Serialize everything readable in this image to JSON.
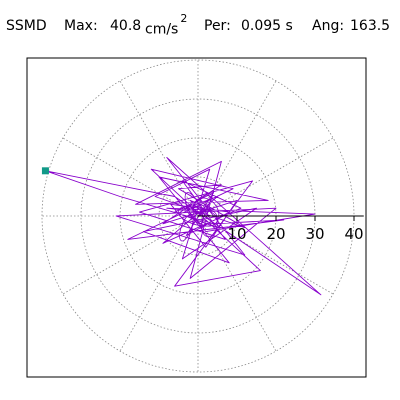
{
  "header": {
    "component": "SSMD",
    "max_label": "Max:",
    "max_value": "40.8",
    "max_unit": "cm/s",
    "max_exp": "2",
    "per_label": "Per:",
    "per_value": "0.095 s",
    "ang_label": "Ang:",
    "ang_value": "163.5"
  },
  "chart_data": {
    "type": "polar-orbit",
    "max_radius": 40.8,
    "peak_angle_deg": 163.5,
    "radial_ticks": [
      10,
      20,
      30,
      40
    ],
    "radial_tick_labels": [
      "10",
      "20",
      "30",
      "40"
    ],
    "radial_rings": [
      10,
      20,
      30,
      40
    ],
    "spoke_step_deg": 30,
    "grid": true,
    "colors": {
      "trace": "#8800cc",
      "peak_marker": "#119988",
      "grid": "#888888",
      "axis": "#000000"
    },
    "trace_vertices": [
      [
        0,
        0
      ],
      [
        3,
        2
      ],
      [
        -2,
        4
      ],
      [
        5,
        -3
      ],
      [
        -6,
        1
      ],
      [
        4,
        6
      ],
      [
        -3,
        -5
      ],
      [
        8,
        1
      ],
      [
        -7,
        3
      ],
      [
        2,
        -8
      ],
      [
        10,
        4
      ],
      [
        -9,
        -2
      ],
      [
        6,
        8
      ],
      [
        -5,
        7
      ],
      [
        12,
        -3
      ],
      [
        -11,
        5
      ],
      [
        3,
        12
      ],
      [
        -4,
        -11
      ],
      [
        15,
        2
      ],
      [
        -14,
        -4
      ],
      [
        8,
        -12
      ],
      [
        -10,
        10
      ],
      [
        18,
        4
      ],
      [
        -16,
        3
      ],
      [
        6,
        14
      ],
      [
        -2,
        -16
      ],
      [
        20,
        2
      ],
      [
        -21,
        0
      ],
      [
        12,
        -10
      ],
      [
        -8,
        15
      ],
      [
        31.5,
        -20.2
      ],
      [
        -6,
        5
      ],
      [
        -39.1,
        11.6
      ],
      [
        -20,
        5
      ],
      [
        4,
        -2
      ],
      [
        22,
        -1
      ],
      [
        -18,
        -6
      ],
      [
        9,
        7
      ],
      [
        -12,
        12
      ],
      [
        16,
        -14
      ],
      [
        -6,
        -18
      ],
      [
        14,
        9
      ],
      [
        -15,
        1
      ],
      [
        7,
        -6
      ],
      [
        -4,
        9
      ],
      [
        11,
        2
      ],
      [
        -9,
        -7
      ],
      [
        5,
        5
      ],
      [
        -3,
        2
      ],
      [
        2,
        -4
      ],
      [
        30,
        0.5
      ],
      [
        -8,
        2
      ],
      [
        1,
        1
      ],
      [
        0,
        0
      ]
    ]
  }
}
